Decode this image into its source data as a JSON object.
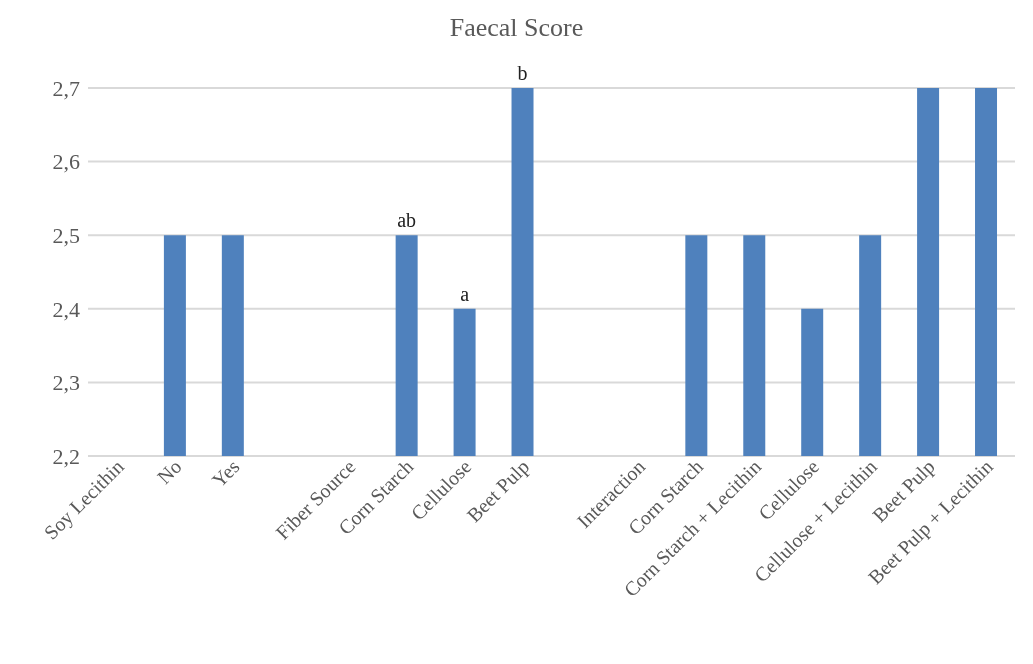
{
  "chart_data": {
    "type": "bar",
    "title": "Faecal Score",
    "categories": [
      "Soy Lecithin",
      "No",
      "Yes",
      null,
      "Fiber Source",
      "Corn Starch",
      "Cellulose",
      "Beet Pulp",
      null,
      "Interaction",
      "Corn Starch",
      "Corn Starch + Lecithin",
      "Cellulose",
      "Cellulose + Lecithin",
      "Beet Pulp",
      "Beet Pulp + Lecithin"
    ],
    "values": [
      null,
      2.5,
      2.5,
      null,
      null,
      2.5,
      2.4,
      2.7,
      null,
      null,
      2.5,
      2.5,
      2.4,
      2.5,
      2.7,
      2.7
    ],
    "color": "#4f81bd",
    "ylim": [
      2.2,
      2.7
    ],
    "yticks": [
      {
        "value": 2.2,
        "label": "2,2"
      },
      {
        "value": 2.3,
        "label": "2,3"
      },
      {
        "value": 2.4,
        "label": "2,4"
      },
      {
        "value": 2.5,
        "label": "2,5"
      },
      {
        "value": 2.6,
        "label": "2,6"
      },
      {
        "value": 2.7,
        "label": "2,7"
      }
    ],
    "grid": "y",
    "annotations": [
      {
        "text": "ab",
        "x": "Corn Starch",
        "y": 2.5
      },
      {
        "text": "a",
        "x": "Cellulose",
        "y": 2.4
      },
      {
        "text": "b",
        "x": "Beet Pulp",
        "y": 2.7
      }
    ]
  }
}
